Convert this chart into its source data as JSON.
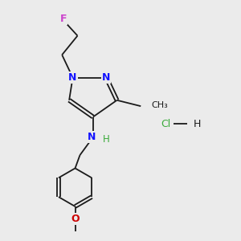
{
  "background_color": "#ebebeb",
  "bond_color": "#1a1a1a",
  "N_color": "#1414ff",
  "F_color": "#cc44cc",
  "O_color": "#cc0000",
  "H_color": "#3aaa3a",
  "Cl_color": "#3aaa3a",
  "methyl_label": "CH₃",
  "methoxy_label": "O",
  "F_label": "F",
  "N_label": "N",
  "H_label": "H",
  "Cl_label": "Cl",
  "HCl_H_label": "H"
}
